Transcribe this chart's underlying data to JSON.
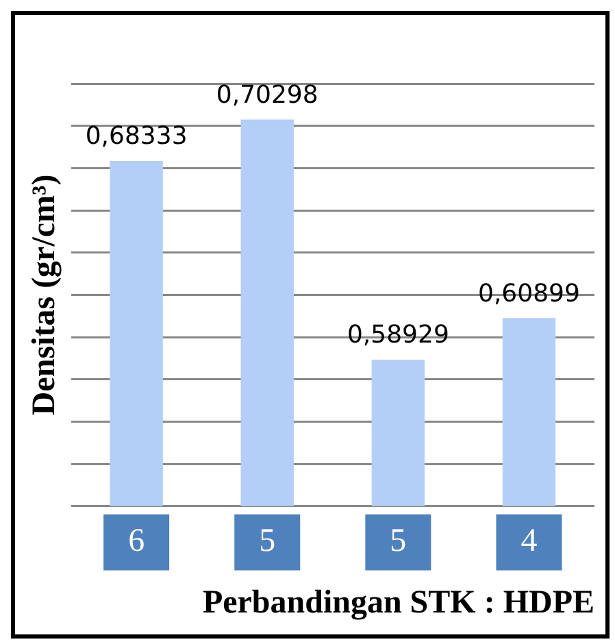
{
  "chart_data": {
    "type": "bar",
    "xlabel": "Perbandingan STK : HDPE",
    "ylabel": "Densitas (gr/cm³)",
    "categories": [
      "6",
      "5",
      "5",
      "4"
    ],
    "values": [
      0.68333,
      0.70298,
      0.58929,
      0.60899
    ],
    "value_labels": [
      "0,68333",
      "0,70298",
      "0,58929",
      "0,60899"
    ],
    "color": "#b4cff7",
    "ylim": [
      0.52,
      0.72
    ],
    "grid": "y",
    "tick_labels": "x",
    "legend": false
  }
}
